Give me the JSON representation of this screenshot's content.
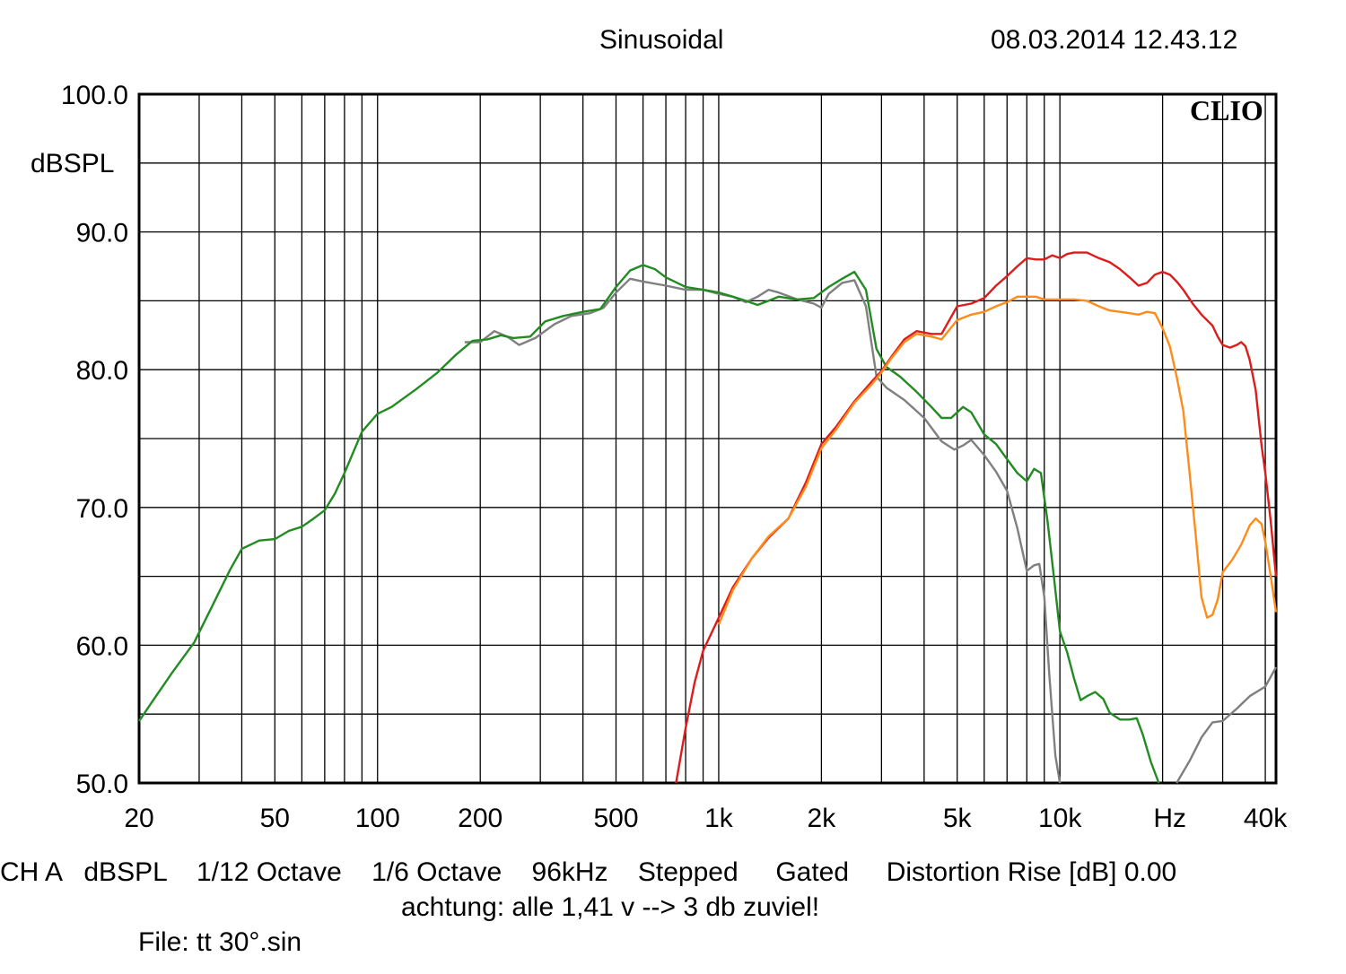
{
  "header": {
    "mode": "Sinusoidal",
    "datetime": "08.03.2014 12.43.12"
  },
  "footer": {
    "settings_line": "CH A   dBSPL    1/12 Octave    1/6 Octave    96kHz    Stepped     Gated     Distortion Rise [dB] 0.00",
    "note": "achtung: alle 1,41 v --> 3 db zuviel!",
    "file": "File: tt 30°.sin"
  },
  "chart_data": {
    "type": "line",
    "title": "Sinusoidal",
    "xlabel": "Hz",
    "ylabel": "dBSPL",
    "x_scale": "log",
    "xlim": [
      20,
      43000
    ],
    "ylim": [
      50,
      100
    ],
    "brand": "CLIO",
    "grid": true,
    "y_ticks": [
      "100.0",
      "90.0",
      "80.0",
      "70.0",
      "60.0",
      "50.0"
    ],
    "y_tick_values": [
      100,
      90,
      80,
      70,
      60,
      50
    ],
    "x_ticks": [
      {
        "value": 20,
        "label": "20"
      },
      {
        "value": 50,
        "label": "50"
      },
      {
        "value": 100,
        "label": "100"
      },
      {
        "value": 200,
        "label": "200"
      },
      {
        "value": 500,
        "label": "500"
      },
      {
        "value": 1000,
        "label": "1k"
      },
      {
        "value": 2000,
        "label": "2k"
      },
      {
        "value": 5000,
        "label": "5k"
      },
      {
        "value": 10000,
        "label": "10k"
      },
      {
        "value": 40000,
        "label": "40k"
      }
    ],
    "x_unit_label": "Hz",
    "x_unit_value": 21000,
    "series": [
      {
        "color": "#808080",
        "points": [
          [
            180,
            82
          ],
          [
            200,
            82
          ],
          [
            220,
            82.8
          ],
          [
            240,
            82.4
          ],
          [
            260,
            81.8
          ],
          [
            290,
            82.3
          ],
          [
            330,
            83.3
          ],
          [
            370,
            83.9
          ],
          [
            420,
            84.1
          ],
          [
            460,
            84.5
          ],
          [
            500,
            85.6
          ],
          [
            550,
            86.6
          ],
          [
            600,
            86.4
          ],
          [
            700,
            86.1
          ],
          [
            800,
            85.8
          ],
          [
            900,
            85.8
          ],
          [
            1000,
            85.5
          ],
          [
            1100,
            85.3
          ],
          [
            1200,
            84.9
          ],
          [
            1300,
            85.3
          ],
          [
            1400,
            85.8
          ],
          [
            1500,
            85.6
          ],
          [
            1700,
            85.1
          ],
          [
            1900,
            84.8
          ],
          [
            2000,
            84.5
          ],
          [
            2100,
            85.5
          ],
          [
            2300,
            86.3
          ],
          [
            2500,
            86.5
          ],
          [
            2700,
            84.6
          ],
          [
            2900,
            79.5
          ],
          [
            3100,
            78.7
          ],
          [
            3500,
            77.8
          ],
          [
            4000,
            76.5
          ],
          [
            4500,
            74.8
          ],
          [
            4900,
            74.2
          ],
          [
            5200,
            74.5
          ],
          [
            5500,
            74.9
          ],
          [
            6000,
            73.8
          ],
          [
            6500,
            72.6
          ],
          [
            7000,
            71.2
          ],
          [
            7500,
            68.5
          ],
          [
            8000,
            65.4
          ],
          [
            8400,
            65.8
          ],
          [
            8700,
            65.9
          ],
          [
            9000,
            63.5
          ],
          [
            9300,
            58
          ],
          [
            9700,
            52
          ],
          [
            10000,
            50
          ]
        ]
      },
      {
        "color": "#7f7f7f",
        "points": [
          [
            22000,
            50
          ],
          [
            24000,
            51.6
          ],
          [
            26000,
            53.3
          ],
          [
            28000,
            54.4
          ],
          [
            30000,
            54.5
          ],
          [
            33000,
            55.4
          ],
          [
            36000,
            56.3
          ],
          [
            40000,
            57
          ],
          [
            43000,
            58.4
          ]
        ]
      },
      {
        "color": "#228b22",
        "points": [
          [
            20,
            54.5
          ],
          [
            22,
            56
          ],
          [
            25,
            58
          ],
          [
            29,
            60.2
          ],
          [
            33,
            63
          ],
          [
            37,
            65.5
          ],
          [
            40,
            67
          ],
          [
            45,
            67.6
          ],
          [
            50,
            67.7
          ],
          [
            55,
            68.3
          ],
          [
            60,
            68.6
          ],
          [
            65,
            69.2
          ],
          [
            70,
            69.8
          ],
          [
            75,
            71
          ],
          [
            80,
            72.5
          ],
          [
            90,
            75.5
          ],
          [
            100,
            76.8
          ],
          [
            110,
            77.3
          ],
          [
            130,
            78.6
          ],
          [
            150,
            79.8
          ],
          [
            170,
            81.1
          ],
          [
            190,
            82.1
          ],
          [
            210,
            82.2
          ],
          [
            230,
            82.5
          ],
          [
            250,
            82.3
          ],
          [
            280,
            82.4
          ],
          [
            310,
            83.5
          ],
          [
            350,
            83.9
          ],
          [
            400,
            84.2
          ],
          [
            450,
            84.4
          ],
          [
            500,
            86
          ],
          [
            550,
            87.2
          ],
          [
            600,
            87.6
          ],
          [
            650,
            87.3
          ],
          [
            700,
            86.7
          ],
          [
            800,
            86
          ],
          [
            900,
            85.8
          ],
          [
            1000,
            85.6
          ],
          [
            1100,
            85.3
          ],
          [
            1200,
            85
          ],
          [
            1300,
            84.7
          ],
          [
            1400,
            85
          ],
          [
            1500,
            85.3
          ],
          [
            1700,
            85.1
          ],
          [
            1900,
            85.2
          ],
          [
            2100,
            86
          ],
          [
            2300,
            86.6
          ],
          [
            2500,
            87.1
          ],
          [
            2700,
            85.8
          ],
          [
            2900,
            81.5
          ],
          [
            3100,
            80.2
          ],
          [
            3400,
            79.5
          ],
          [
            3800,
            78.4
          ],
          [
            4200,
            77.3
          ],
          [
            4500,
            76.5
          ],
          [
            4800,
            76.5
          ],
          [
            5200,
            77.3
          ],
          [
            5500,
            76.9
          ],
          [
            6000,
            75.3
          ],
          [
            6500,
            74.6
          ],
          [
            7000,
            73.5
          ],
          [
            7500,
            72.5
          ],
          [
            8000,
            71.9
          ],
          [
            8400,
            72.8
          ],
          [
            8800,
            72.5
          ],
          [
            9200,
            69
          ],
          [
            9600,
            65
          ],
          [
            10000,
            61
          ],
          [
            10500,
            59.5
          ],
          [
            11000,
            57.6
          ],
          [
            11500,
            56
          ],
          [
            12000,
            56.3
          ],
          [
            12700,
            56.6
          ],
          [
            13400,
            56.1
          ],
          [
            14000,
            55.1
          ],
          [
            15000,
            54.6
          ],
          [
            16000,
            54.6
          ],
          [
            16800,
            54.7
          ],
          [
            17500,
            53.5
          ],
          [
            18500,
            51.5
          ],
          [
            19500,
            50
          ]
        ]
      },
      {
        "color": "#dd1c1c",
        "points": [
          [
            750,
            50
          ],
          [
            800,
            54
          ],
          [
            850,
            57.3
          ],
          [
            900,
            59.6
          ],
          [
            1000,
            62
          ],
          [
            1100,
            64.2
          ],
          [
            1250,
            66.3
          ],
          [
            1400,
            67.8
          ],
          [
            1600,
            69.2
          ],
          [
            1800,
            71.8
          ],
          [
            2000,
            74.6
          ],
          [
            2200,
            75.8
          ],
          [
            2500,
            77.7
          ],
          [
            2800,
            79.1
          ],
          [
            3000,
            79.9
          ],
          [
            3200,
            80.9
          ],
          [
            3500,
            82.2
          ],
          [
            3800,
            82.8
          ],
          [
            4200,
            82.6
          ],
          [
            4500,
            82.6
          ],
          [
            5000,
            84.6
          ],
          [
            5500,
            84.8
          ],
          [
            6000,
            85.2
          ],
          [
            6500,
            86.1
          ],
          [
            7000,
            86.8
          ],
          [
            7500,
            87.5
          ],
          [
            8000,
            88.1
          ],
          [
            8500,
            88
          ],
          [
            9000,
            88
          ],
          [
            9500,
            88.3
          ],
          [
            10000,
            88.1
          ],
          [
            10500,
            88.4
          ],
          [
            11000,
            88.5
          ],
          [
            12000,
            88.5
          ],
          [
            13000,
            88.1
          ],
          [
            14000,
            87.8
          ],
          [
            15000,
            87.3
          ],
          [
            16000,
            86.7
          ],
          [
            17000,
            86.1
          ],
          [
            18000,
            86.3
          ],
          [
            19000,
            86.9
          ],
          [
            20000,
            87.1
          ],
          [
            21000,
            86.9
          ],
          [
            22000,
            86.4
          ],
          [
            23000,
            85.8
          ],
          [
            24500,
            84.8
          ],
          [
            26000,
            84
          ],
          [
            28000,
            83.2
          ],
          [
            29000,
            82.4
          ],
          [
            30000,
            81.8
          ],
          [
            31500,
            81.6
          ],
          [
            33000,
            81.8
          ],
          [
            34000,
            82
          ],
          [
            35000,
            81.7
          ],
          [
            36000,
            80.7
          ],
          [
            37500,
            78.5
          ],
          [
            39000,
            74.5
          ],
          [
            40000,
            72.5
          ],
          [
            41500,
            69
          ],
          [
            43000,
            65
          ]
        ]
      },
      {
        "color": "#ff8c1a",
        "points": [
          [
            1000,
            61.5
          ],
          [
            1100,
            64
          ],
          [
            1250,
            66.3
          ],
          [
            1400,
            67.9
          ],
          [
            1600,
            69.2
          ],
          [
            1800,
            71.5
          ],
          [
            2000,
            74.3
          ],
          [
            2200,
            75.6
          ],
          [
            2500,
            77.6
          ],
          [
            2800,
            78.9
          ],
          [
            3000,
            79.8
          ],
          [
            3200,
            80.8
          ],
          [
            3500,
            82
          ],
          [
            3800,
            82.6
          ],
          [
            4200,
            82.4
          ],
          [
            4500,
            82.2
          ],
          [
            5000,
            83.6
          ],
          [
            5500,
            84
          ],
          [
            6000,
            84.2
          ],
          [
            6500,
            84.6
          ],
          [
            7000,
            84.9
          ],
          [
            7500,
            85.3
          ],
          [
            8000,
            85.3
          ],
          [
            8500,
            85.3
          ],
          [
            9000,
            85.1
          ],
          [
            10000,
            85.1
          ],
          [
            11000,
            85.1
          ],
          [
            12000,
            85
          ],
          [
            13000,
            84.6
          ],
          [
            14000,
            84.3
          ],
          [
            15000,
            84.2
          ],
          [
            16000,
            84.1
          ],
          [
            17000,
            84
          ],
          [
            18000,
            84.2
          ],
          [
            19000,
            84.1
          ],
          [
            20000,
            83
          ],
          [
            21000,
            81.7
          ],
          [
            22000,
            79.5
          ],
          [
            23000,
            77
          ],
          [
            24000,
            72.5
          ],
          [
            25000,
            68
          ],
          [
            26000,
            63.5
          ],
          [
            27000,
            62
          ],
          [
            28000,
            62.2
          ],
          [
            29000,
            63.3
          ],
          [
            30000,
            65.3
          ],
          [
            32000,
            66.2
          ],
          [
            34000,
            67.3
          ],
          [
            36000,
            68.7
          ],
          [
            37500,
            69.2
          ],
          [
            39000,
            68.8
          ],
          [
            40000,
            67.5
          ],
          [
            41500,
            65
          ],
          [
            43000,
            62.4
          ]
        ]
      }
    ]
  }
}
